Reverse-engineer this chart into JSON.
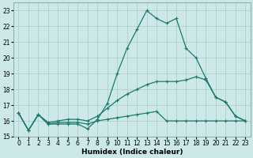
{
  "xlabel": "Humidex (Indice chaleur)",
  "xlim": [
    -0.5,
    23.5
  ],
  "ylim": [
    15,
    23.5
  ],
  "yticks": [
    15,
    16,
    17,
    18,
    19,
    20,
    21,
    22,
    23
  ],
  "xticks": [
    0,
    1,
    2,
    3,
    4,
    5,
    6,
    7,
    8,
    9,
    10,
    11,
    12,
    13,
    14,
    15,
    16,
    17,
    18,
    19,
    20,
    21,
    22,
    23
  ],
  "bg_color": "#cce8e8",
  "grid_color": "#aacccc",
  "line_color": "#1a7a6a",
  "line1_y": [
    16.5,
    15.4,
    16.4,
    15.8,
    15.8,
    15.8,
    15.8,
    15.5,
    16.1,
    17.1,
    19.0,
    20.6,
    21.8,
    23.0,
    22.5,
    22.2,
    22.5,
    20.6,
    20.0,
    18.7,
    17.5,
    17.2,
    16.3,
    16.0
  ],
  "line2_y": [
    16.5,
    15.4,
    16.4,
    15.9,
    16.0,
    16.1,
    16.1,
    16.0,
    16.3,
    16.8,
    17.3,
    17.7,
    18.0,
    18.3,
    18.5,
    18.5,
    18.5,
    18.6,
    18.8,
    18.6,
    17.5,
    17.2,
    16.3,
    16.0
  ],
  "line3_y": [
    16.5,
    15.4,
    16.4,
    15.8,
    15.9,
    15.9,
    15.9,
    15.8,
    16.0,
    16.1,
    16.2,
    16.3,
    16.4,
    16.5,
    16.6,
    16.0,
    16.0,
    16.0,
    16.0,
    16.0,
    16.0,
    16.0,
    16.0,
    16.0
  ]
}
